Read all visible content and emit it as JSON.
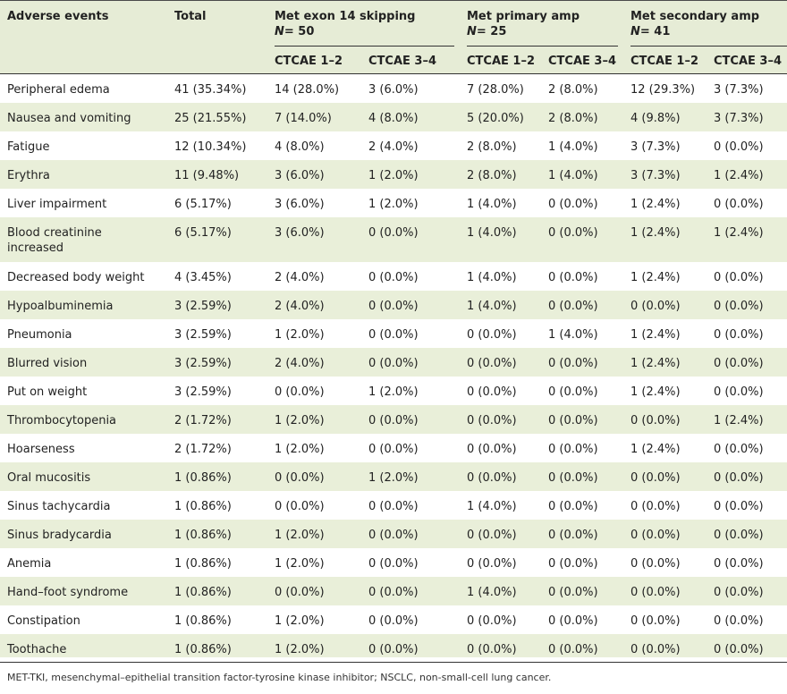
{
  "table": {
    "headers": {
      "adverse_events": "Adverse events",
      "total": "Total",
      "groups": [
        {
          "title": "Met exon 14 skipping",
          "n_prefix": "N",
          "n_value": "= 50"
        },
        {
          "title": "Met primary amp",
          "n_prefix": "N",
          "n_value": "= 25"
        },
        {
          "title": "Met secondary amp",
          "n_prefix": "N",
          "n_value": "= 41"
        }
      ],
      "sub": [
        "CTCAE 1–2",
        "CTCAE 3–4",
        "CTCAE 1–2",
        "CTCAE 3–4",
        "CTCAE 1–2",
        "CTCAE 3–4"
      ]
    },
    "rows": [
      {
        "event": "Peripheral edema",
        "total": "41 (35.34%)",
        "vals": [
          "14 (28.0%)",
          "3 (6.0%)",
          "7 (28.0%)",
          "2 (8.0%)",
          "12 (29.3%)",
          "3 (7.3%)"
        ]
      },
      {
        "event": "Nausea and vomiting",
        "total": "25 (21.55%)",
        "vals": [
          "7 (14.0%)",
          "4 (8.0%)",
          "5 (20.0%)",
          "2 (8.0%)",
          "4 (9.8%)",
          "3 (7.3%)"
        ]
      },
      {
        "event": "Fatigue",
        "total": "12 (10.34%)",
        "vals": [
          "4 (8.0%)",
          "2 (4.0%)",
          "2 (8.0%)",
          "1 (4.0%)",
          "3 (7.3%)",
          "0 (0.0%)"
        ]
      },
      {
        "event": "Erythra",
        "total": "11 (9.48%)",
        "vals": [
          "3 (6.0%)",
          "1 (2.0%)",
          "2 (8.0%)",
          "1 (4.0%)",
          "3 (7.3%)",
          "1 (2.4%)"
        ]
      },
      {
        "event": "Liver impairment",
        "total": "6 (5.17%)",
        "vals": [
          "3 (6.0%)",
          "1 (2.0%)",
          "1 (4.0%)",
          "0 (0.0%)",
          "1 (2.4%)",
          "0 (0.0%)"
        ]
      },
      {
        "event": "Blood creatinine increased",
        "total": "6 (5.17%)",
        "vals": [
          "3 (6.0%)",
          "0 (0.0%)",
          "1 (4.0%)",
          "0 (0.0%)",
          "1 (2.4%)",
          "1 (2.4%)"
        ]
      },
      {
        "event": "Decreased body weight",
        "total": "4 (3.45%)",
        "vals": [
          "2 (4.0%)",
          "0 (0.0%)",
          "1 (4.0%)",
          "0 (0.0%)",
          "1 (2.4%)",
          "0 (0.0%)"
        ]
      },
      {
        "event": "Hypoalbuminemia",
        "total": "3 (2.59%)",
        "vals": [
          "2 (4.0%)",
          "0 (0.0%)",
          "1 (4.0%)",
          "0 (0.0%)",
          "0 (0.0%)",
          "0 (0.0%)"
        ]
      },
      {
        "event": "Pneumonia",
        "total": "3 (2.59%)",
        "vals": [
          "1 (2.0%)",
          "0 (0.0%)",
          "0 (0.0%)",
          "1 (4.0%)",
          "1 (2.4%)",
          "0 (0.0%)"
        ]
      },
      {
        "event": "Blurred vision",
        "total": "3 (2.59%)",
        "vals": [
          "2 (4.0%)",
          "0 (0.0%)",
          "0 (0.0%)",
          "0 (0.0%)",
          "1 (2.4%)",
          "0 (0.0%)"
        ]
      },
      {
        "event": "Put on weight",
        "total": "3 (2.59%)",
        "vals": [
          "0 (0.0%)",
          "1 (2.0%)",
          "0 (0.0%)",
          "0 (0.0%)",
          "1 (2.4%)",
          "0 (0.0%)"
        ]
      },
      {
        "event": "Thrombocytopenia",
        "total": "2 (1.72%)",
        "vals": [
          "1 (2.0%)",
          "0 (0.0%)",
          "0 (0.0%)",
          "0 (0.0%)",
          "0 (0.0%)",
          "1 (2.4%)"
        ]
      },
      {
        "event": "Hoarseness",
        "total": "2 (1.72%)",
        "vals": [
          "1 (2.0%)",
          "0 (0.0%)",
          "0 (0.0%)",
          "0 (0.0%)",
          "1 (2.4%)",
          "0 (0.0%)"
        ]
      },
      {
        "event": "Oral mucositis",
        "total": "1 (0.86%)",
        "vals": [
          "0 (0.0%)",
          "1 (2.0%)",
          "0 (0.0%)",
          "0 (0.0%)",
          "0 (0.0%)",
          "0 (0.0%)"
        ]
      },
      {
        "event": "Sinus tachycardia",
        "total": "1 (0.86%)",
        "vals": [
          "0 (0.0%)",
          "0 (0.0%)",
          "1 (4.0%)",
          "0 (0.0%)",
          "0 (0.0%)",
          "0 (0.0%)"
        ]
      },
      {
        "event": "Sinus bradycardia",
        "total": "1 (0.86%)",
        "vals": [
          "1 (2.0%)",
          "0 (0.0%)",
          "0 (0.0%)",
          "0 (0.0%)",
          "0 (0.0%)",
          "0 (0.0%)"
        ]
      },
      {
        "event": "Anemia",
        "total": "1 (0.86%)",
        "vals": [
          "1 (2.0%)",
          "0 (0.0%)",
          "0 (0.0%)",
          "0 (0.0%)",
          "0 (0.0%)",
          "0 (0.0%)"
        ]
      },
      {
        "event": "Hand–foot syndrome",
        "total": "1 (0.86%)",
        "vals": [
          "0 (0.0%)",
          "0 (0.0%)",
          "1 (4.0%)",
          "0 (0.0%)",
          "0 (0.0%)",
          "0 (0.0%)"
        ]
      },
      {
        "event": "Constipation",
        "total": "1 (0.86%)",
        "vals": [
          "1 (2.0%)",
          "0 (0.0%)",
          "0 (0.0%)",
          "0 (0.0%)",
          "0 (0.0%)",
          "0 (0.0%)"
        ]
      },
      {
        "event": "Toothache",
        "total": "1 (0.86%)",
        "vals": [
          "1 (2.0%)",
          "0 (0.0%)",
          "0 (0.0%)",
          "0 (0.0%)",
          "0 (0.0%)",
          "0 (0.0%)"
        ]
      }
    ],
    "footnote": "MET-TKI, mesenchymal–epithelial transition factor-tyrosine kinase inhibitor; NSCLC, non-small-cell lung cancer."
  }
}
